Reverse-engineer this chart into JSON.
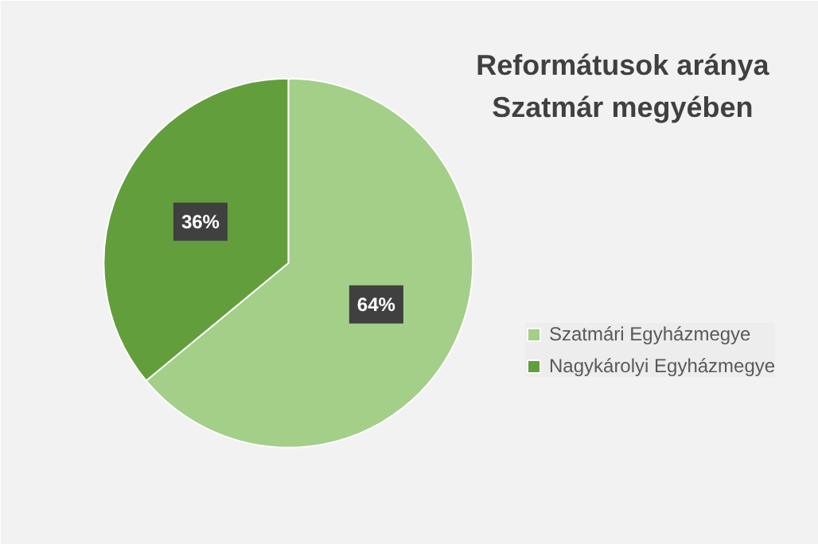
{
  "chart_data": {
    "type": "pie",
    "title": "Reformátusok aránya\nSzatmár megyében",
    "categories": [
      "Szatmári Egyházmegye",
      "Nagykárolyi Egyházmegye"
    ],
    "values": [
      64,
      36
    ],
    "colors": [
      "#a3cf88",
      "#629f3c"
    ],
    "value_labels": [
      "64%",
      "36%"
    ],
    "legend": "right"
  }
}
